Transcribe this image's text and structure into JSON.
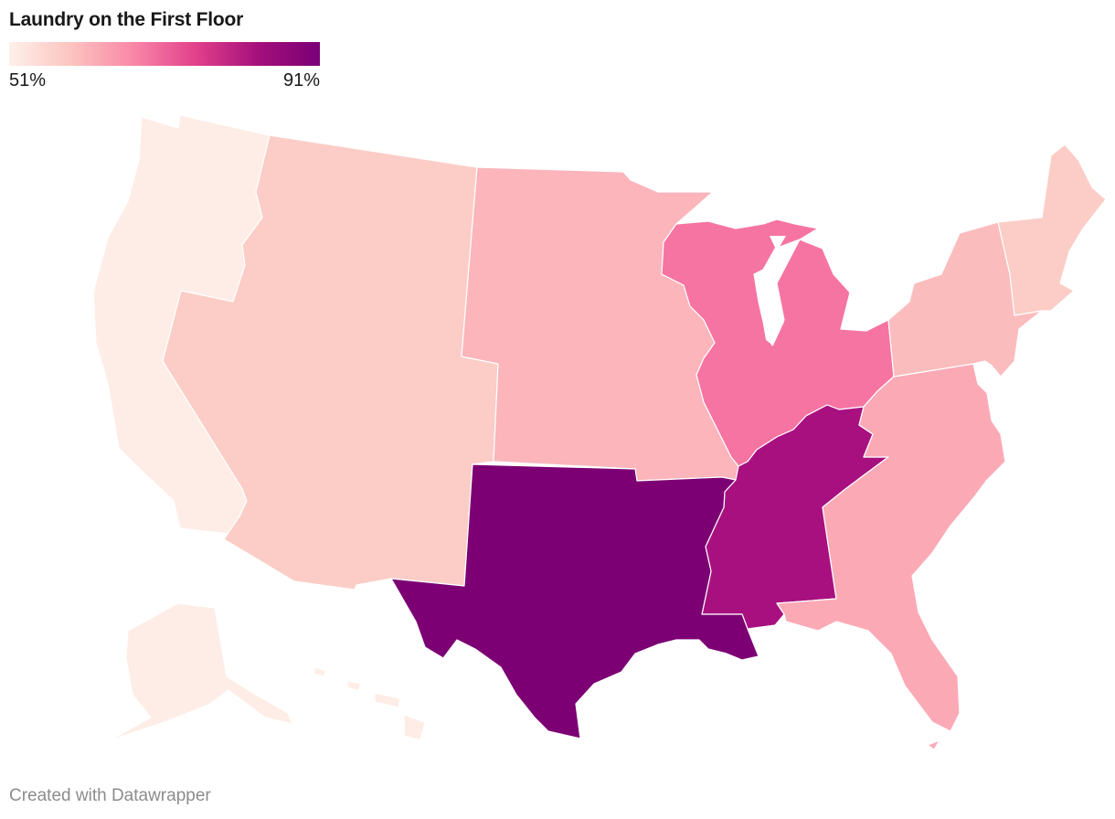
{
  "title": "Laundry on the First Floor",
  "legend": {
    "min_label": "51%",
    "max_label": "91%",
    "gradient": [
      "#fff0ea",
      "#fcc4c0",
      "#f987a7",
      "#e2408a",
      "#a5107c",
      "#7a0077"
    ]
  },
  "regions": [
    {
      "id": "pacific",
      "states": "WA, OR, CA, AK, HI",
      "color": "#feede6"
    },
    {
      "id": "mountain",
      "states": "ID, MT, WY, NV, UT, CO, AZ, NM",
      "color": "#fbcdc6"
    },
    {
      "id": "west-north-central",
      "states": "ND, SD, NE, KS, MN, IA, MO",
      "color": "#fbb5bb"
    },
    {
      "id": "east-north-central",
      "states": "WI, MI, IL, IN, OH",
      "color": "#f674a2"
    },
    {
      "id": "east-south-central",
      "states": "KY, TN, MS, AL",
      "color": "#a81080"
    },
    {
      "id": "west-south-central",
      "states": "TX, OK, AR, LA",
      "color": "#7c0073"
    },
    {
      "id": "south-atlantic",
      "states": "DE, MD, DC, VA, WV, NC, SC, GA, FL",
      "color": "#fca9b6"
    },
    {
      "id": "middle-atlantic",
      "states": "NY, PA, NJ",
      "color": "#fbbcbd"
    },
    {
      "id": "new-england",
      "states": "ME, NH, VT, MA, RI, CT",
      "color": "#fbcdc6"
    }
  ],
  "credit": "Created with Datawrapper"
}
